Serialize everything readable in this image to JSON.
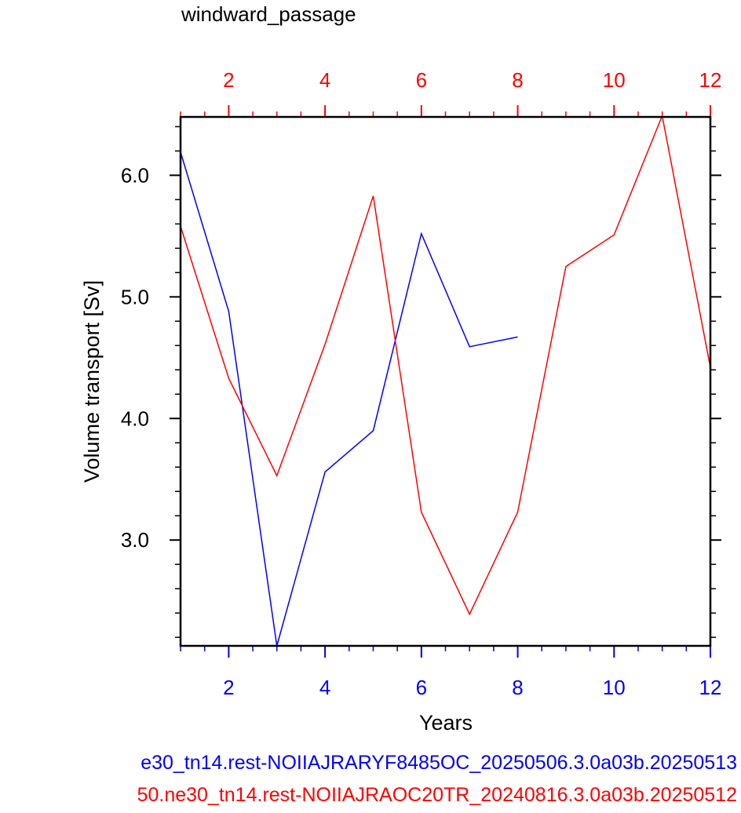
{
  "chart_data": {
    "type": "line",
    "title": "windward_passage",
    "xlabel": "Years",
    "ylabel": "Volume transport [Sv]",
    "xlim": [
      1,
      12
    ],
    "ylim": [
      2.13,
      6.48
    ],
    "grid": false,
    "bottom_axis": {
      "color": "#0000ff",
      "ticks": [
        2,
        4,
        6,
        8,
        10,
        12
      ],
      "tick_labels": [
        "2",
        "4",
        "6",
        "8",
        "10",
        "12"
      ]
    },
    "top_axis": {
      "color": "#ff0000",
      "ticks": [
        2,
        4,
        6,
        8,
        10,
        12
      ],
      "tick_labels": [
        "2",
        "4",
        "6",
        "8",
        "10",
        "12"
      ]
    },
    "y_axis": {
      "ticks": [
        3.0,
        4.0,
        5.0,
        6.0
      ],
      "tick_labels": [
        "3.0",
        "4.0",
        "5.0",
        "6.0"
      ]
    },
    "series": [
      {
        "name": "e30_tn14.rest-NOIIAJRARYF8485OC_20250506.3.0a03b.20250513",
        "color": "#0000ff",
        "x": [
          1,
          2,
          3,
          4,
          5,
          6,
          7,
          8
        ],
        "y": [
          6.19,
          4.88,
          2.13,
          3.56,
          3.9,
          5.52,
          4.59,
          4.67
        ]
      },
      {
        "name": "50.ne30_tn14.rest-NOIIAJRAOC20TR_20240816.3.0a03b.20250512",
        "color": "#ff0000",
        "x": [
          1,
          2,
          3,
          4,
          5,
          6,
          7,
          8,
          9,
          10,
          11,
          12
        ],
        "y": [
          5.58,
          4.33,
          3.53,
          4.61,
          5.83,
          3.23,
          2.39,
          3.23,
          5.25,
          5.51,
          6.49,
          4.42
        ]
      }
    ]
  }
}
